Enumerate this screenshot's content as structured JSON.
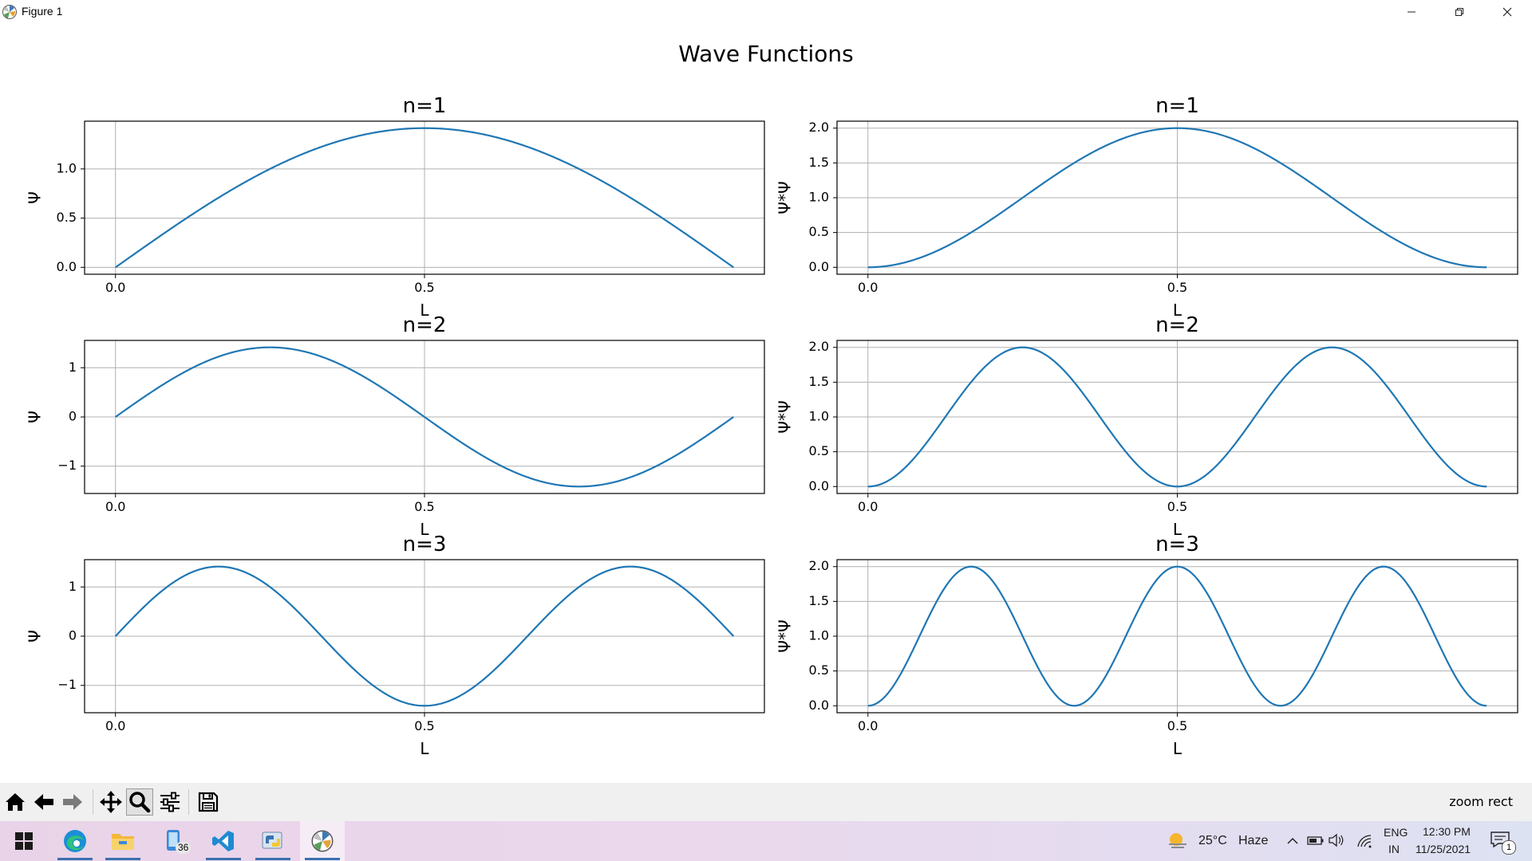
{
  "window": {
    "title": "Figure 1",
    "icon": "matplotlib-icon",
    "controls": [
      "minimize-icon",
      "restore-icon",
      "close-icon"
    ]
  },
  "figure": {
    "suptitle": "Wave Functions"
  },
  "chart_data": [
    {
      "type": "line",
      "title": "n=1",
      "n": 1,
      "kind": "psi",
      "function": "sqrt(2)*sin(n*pi*x)",
      "xlabel": "L",
      "ylabel": "Ψ",
      "x_range": [
        0,
        1
      ],
      "xlim": [
        -0.05,
        1.05
      ],
      "ylim": [
        -0.07,
        1.485
      ],
      "xticks": [
        "0.0",
        "0.5"
      ],
      "yticks": [
        0.0,
        0.5,
        1.0
      ],
      "ytick_labels": [
        "0.0",
        "0.5",
        "1.0"
      ],
      "grid": true,
      "color": "#1f77b4"
    },
    {
      "type": "line",
      "title": "n=1",
      "n": 1,
      "kind": "prob",
      "function": "2*sin(n*pi*x)^2",
      "xlabel": "L",
      "ylabel": "Ψ*Ψ",
      "x_range": [
        0,
        1
      ],
      "xlim": [
        -0.05,
        1.05
      ],
      "ylim": [
        -0.1,
        2.1
      ],
      "xticks": [
        "0.0",
        "0.5"
      ],
      "yticks": [
        0.0,
        0.5,
        1.0,
        1.5,
        2.0
      ],
      "ytick_labels": [
        "0.0",
        "0.5",
        "1.0",
        "1.5",
        "2.0"
      ],
      "grid": true,
      "color": "#1f77b4"
    },
    {
      "type": "line",
      "title": "n=2",
      "n": 2,
      "kind": "psi",
      "function": "sqrt(2)*sin(n*pi*x)",
      "xlabel": "L",
      "ylabel": "Ψ",
      "x_range": [
        0,
        1
      ],
      "xlim": [
        -0.05,
        1.05
      ],
      "ylim": [
        -1.555,
        1.555
      ],
      "xticks": [
        "0.0",
        "0.5"
      ],
      "yticks": [
        -1,
        0,
        1
      ],
      "ytick_labels": [
        "−1",
        "0",
        "1"
      ],
      "grid": true,
      "color": "#1f77b4"
    },
    {
      "type": "line",
      "title": "n=2",
      "n": 2,
      "kind": "prob",
      "function": "2*sin(n*pi*x)^2",
      "xlabel": "L",
      "ylabel": "Ψ*Ψ",
      "x_range": [
        0,
        1
      ],
      "xlim": [
        -0.05,
        1.05
      ],
      "ylim": [
        -0.1,
        2.1
      ],
      "xticks": [
        "0.0",
        "0.5"
      ],
      "yticks": [
        0.0,
        0.5,
        1.0,
        1.5,
        2.0
      ],
      "ytick_labels": [
        "0.0",
        "0.5",
        "1.0",
        "1.5",
        "2.0"
      ],
      "grid": true,
      "color": "#1f77b4"
    },
    {
      "type": "line",
      "title": "n=3",
      "n": 3,
      "kind": "psi",
      "function": "sqrt(2)*sin(n*pi*x)",
      "xlabel": "L",
      "ylabel": "Ψ",
      "x_range": [
        0,
        1
      ],
      "xlim": [
        -0.05,
        1.05
      ],
      "ylim": [
        -1.555,
        1.555
      ],
      "xticks": [
        "0.0",
        "0.5"
      ],
      "yticks": [
        -1,
        0,
        1
      ],
      "ytick_labels": [
        "−1",
        "0",
        "1"
      ],
      "grid": true,
      "color": "#1f77b4"
    },
    {
      "type": "line",
      "title": "n=3",
      "n": 3,
      "kind": "prob",
      "function": "2*sin(n*pi*x)^2",
      "xlabel": "L",
      "ylabel": "Ψ*Ψ",
      "x_range": [
        0,
        1
      ],
      "xlim": [
        -0.05,
        1.05
      ],
      "ylim": [
        -0.1,
        2.1
      ],
      "xticks": [
        "0.0",
        "0.5"
      ],
      "yticks": [
        0.0,
        0.5,
        1.0,
        1.5,
        2.0
      ],
      "ytick_labels": [
        "0.0",
        "0.5",
        "1.0",
        "1.5",
        "2.0"
      ],
      "grid": true,
      "color": "#1f77b4"
    }
  ],
  "toolbar": {
    "buttons": [
      "home-icon",
      "back-icon",
      "forward-icon",
      "pan-icon",
      "zoom-icon",
      "configure-subplots-icon",
      "save-icon"
    ],
    "active": "zoom-icon",
    "status": "zoom rect"
  },
  "taskbar": {
    "apps": [
      "windows-start-icon",
      "edge-icon",
      "file-explorer-icon",
      "phone-link-icon",
      "vscode-icon",
      "python-icon",
      "matplotlib-figure-icon"
    ],
    "badge_count": "36",
    "weather": {
      "icon": "haze-weather-icon",
      "temp": "25°C",
      "condition": "Haze"
    },
    "language": {
      "line1": "ENG",
      "line2": "IN"
    },
    "clock": {
      "time": "12:30 PM",
      "date": "11/25/2021"
    },
    "notification_count": "1"
  }
}
